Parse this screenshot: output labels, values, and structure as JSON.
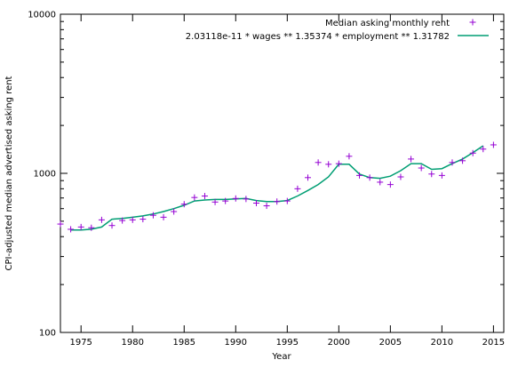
{
  "chart_data": {
    "type": "scatter",
    "title": "",
    "xlabel": "Year",
    "ylabel": "CPI-adjusted median advertised asking rent",
    "xlim": [
      1973,
      2016
    ],
    "ylim": [
      100,
      10000
    ],
    "yscale": "log",
    "grid": false,
    "legend_position": "top-right",
    "x_ticks": [
      1975,
      1980,
      1985,
      1990,
      1995,
      2000,
      2005,
      2010,
      2015
    ],
    "x_tick_labels": [
      "1975",
      "1980",
      "1985",
      "1990",
      "1995",
      "2000",
      "2005",
      "2010",
      "2015"
    ],
    "y_ticks": [
      100,
      1000,
      10000
    ],
    "y_tick_labels": [
      "100",
      "1000",
      "10000"
    ],
    "series": [
      {
        "name": "Median asking monthly rent",
        "kind": "points",
        "marker": "plus",
        "color": "#9400d3",
        "x": [
          1973,
          1974,
          1975,
          1976,
          1977,
          1978,
          1979,
          1980,
          1981,
          1982,
          1983,
          1984,
          1985,
          1986,
          1987,
          1988,
          1989,
          1990,
          1991,
          1992,
          1993,
          1994,
          1995,
          1996,
          1997,
          1998,
          1999,
          2000,
          2001,
          2002,
          2003,
          2004,
          2005,
          2006,
          2007,
          2008,
          2009,
          2010,
          2011,
          2012,
          2013,
          2014,
          2015
        ],
        "y": [
          480,
          445,
          460,
          455,
          510,
          470,
          505,
          510,
          515,
          545,
          530,
          575,
          640,
          705,
          720,
          660,
          670,
          695,
          690,
          650,
          625,
          665,
          670,
          800,
          940,
          1170,
          1140,
          1150,
          1280,
          970,
          940,
          880,
          850,
          950,
          1230,
          1080,
          990,
          970,
          1170,
          1200,
          1340,
          1420,
          1510
        ]
      },
      {
        "name": "2.03118e-11 * wages ** 1.35374 * employment ** 1.31782",
        "kind": "line",
        "color": "#009e73",
        "x": [
          1974,
          1975,
          1976,
          1977,
          1978,
          1979,
          1980,
          1981,
          1982,
          1983,
          1984,
          1985,
          1986,
          1987,
          1988,
          1989,
          1990,
          1991,
          1992,
          1993,
          1994,
          1995,
          1996,
          1997,
          1998,
          1999,
          2000,
          2001,
          2002,
          2003,
          2004,
          2005,
          2006,
          2007,
          2008,
          2009,
          2010,
          2011,
          2012,
          2013,
          2014
        ],
        "y": [
          440,
          440,
          445,
          460,
          515,
          520,
          530,
          540,
          555,
          575,
          600,
          630,
          670,
          680,
          685,
          685,
          690,
          695,
          675,
          665,
          665,
          675,
          720,
          780,
          850,
          950,
          1140,
          1140,
          990,
          940,
          930,
          960,
          1040,
          1150,
          1150,
          1060,
          1070,
          1150,
          1230,
          1350,
          1490
        ]
      }
    ]
  }
}
